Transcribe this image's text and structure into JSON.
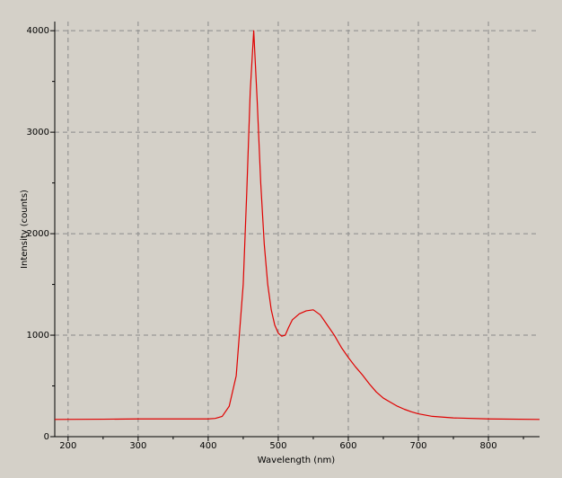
{
  "chart_data": {
    "type": "line",
    "xlabel": "Wavelength (nm)",
    "ylabel": "Intensity (counts)",
    "color": "#e00000",
    "x": [
      181,
      250,
      300,
      350,
      400,
      410,
      420,
      430,
      440,
      450,
      455,
      460,
      465,
      470,
      475,
      480,
      485,
      490,
      495,
      500,
      505,
      510,
      515,
      520,
      530,
      540,
      550,
      560,
      570,
      580,
      590,
      600,
      610,
      620,
      630,
      640,
      650,
      660,
      670,
      680,
      690,
      700,
      720,
      750,
      800,
      873
    ],
    "values": [
      170,
      172,
      175,
      175,
      175,
      180,
      200,
      300,
      600,
      1500,
      2400,
      3400,
      4000,
      3300,
      2500,
      1900,
      1500,
      1250,
      1100,
      1020,
      990,
      1000,
      1080,
      1150,
      1210,
      1240,
      1250,
      1200,
      1100,
      1000,
      880,
      780,
      690,
      610,
      520,
      440,
      380,
      340,
      300,
      270,
      245,
      225,
      200,
      185,
      175,
      170
    ],
    "xlim": [
      181,
      873
    ],
    "ylim": [
      0,
      4090
    ],
    "xticks": [
      200,
      300,
      400,
      500,
      600,
      700,
      800
    ],
    "yticks": [
      0,
      1000,
      2000,
      3000,
      4000
    ],
    "xminorticks": [
      250,
      350,
      450,
      550,
      650,
      750,
      850
    ],
    "yminorticks": [
      500,
      1500,
      2500,
      3500
    ],
    "grid": true
  }
}
